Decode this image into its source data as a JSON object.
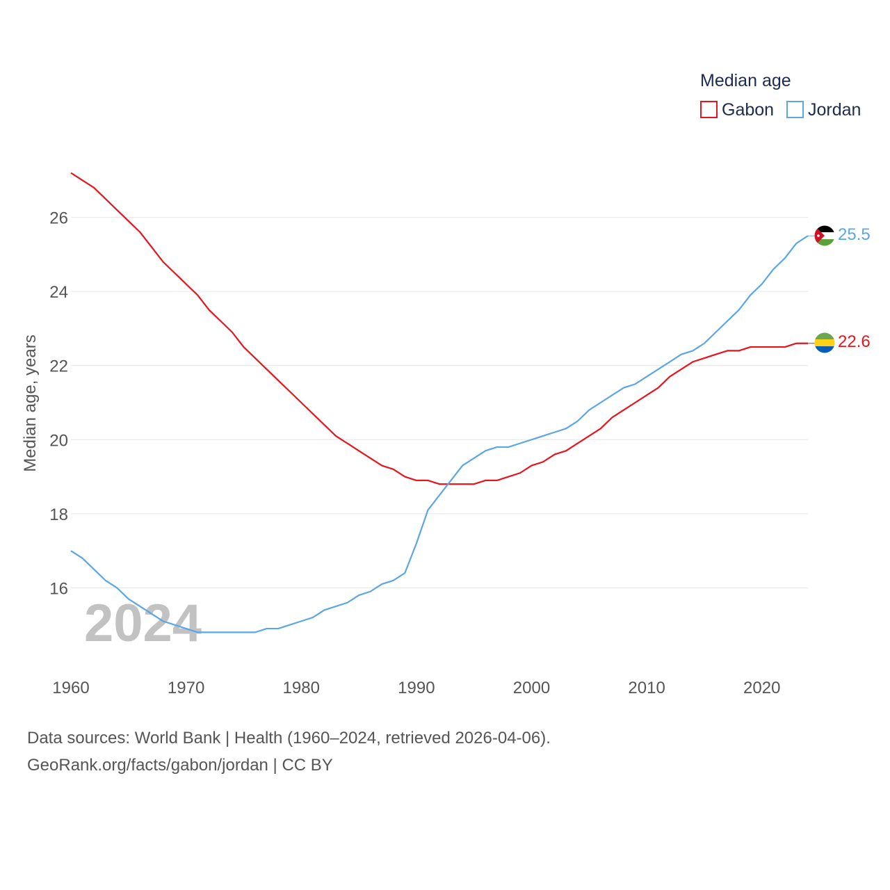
{
  "chart_data": {
    "type": "line",
    "title": "",
    "xlabel": "",
    "ylabel": "Median age, years",
    "legend_title": "Median age",
    "legend_position": "top-right",
    "year_label": "2024",
    "xlim": [
      1960,
      2024
    ],
    "ylim": [
      14,
      28
    ],
    "x_ticks": [
      1960,
      1970,
      1980,
      1990,
      2000,
      2010,
      2020
    ],
    "y_ticks": [
      16,
      18,
      20,
      22,
      24,
      26
    ],
    "x": [
      1960,
      1961,
      1962,
      1963,
      1964,
      1965,
      1966,
      1967,
      1968,
      1969,
      1970,
      1971,
      1972,
      1973,
      1974,
      1975,
      1976,
      1977,
      1978,
      1979,
      1980,
      1981,
      1982,
      1983,
      1984,
      1985,
      1986,
      1987,
      1988,
      1989,
      1990,
      1991,
      1992,
      1993,
      1994,
      1995,
      1996,
      1997,
      1998,
      1999,
      2000,
      2001,
      2002,
      2003,
      2004,
      2005,
      2006,
      2007,
      2008,
      2009,
      2010,
      2011,
      2012,
      2013,
      2014,
      2015,
      2016,
      2017,
      2018,
      2019,
      2020,
      2021,
      2022,
      2023,
      2024
    ],
    "series": [
      {
        "name": "Gabon",
        "color": "#e8141c",
        "end_label": "22.6",
        "flag": "gabon-flag",
        "values": [
          27.2,
          27.0,
          26.8,
          26.5,
          26.2,
          25.9,
          25.6,
          25.2,
          24.8,
          24.5,
          24.2,
          23.9,
          23.5,
          23.2,
          22.9,
          22.5,
          22.2,
          21.9,
          21.6,
          21.3,
          21.0,
          20.7,
          20.4,
          20.1,
          19.9,
          19.7,
          19.5,
          19.3,
          19.2,
          19.0,
          18.9,
          18.9,
          18.8,
          18.8,
          18.8,
          18.8,
          18.9,
          18.9,
          19.0,
          19.1,
          19.3,
          19.4,
          19.6,
          19.7,
          19.9,
          20.1,
          20.3,
          20.6,
          20.8,
          21.0,
          21.2,
          21.4,
          21.7,
          21.9,
          22.1,
          22.2,
          22.3,
          22.4,
          22.4,
          22.5,
          22.5,
          22.5,
          22.5,
          22.6,
          22.6
        ]
      },
      {
        "name": "Jordan",
        "color": "#5aa6e6",
        "end_label": "25.5",
        "flag": "jordan-flag",
        "values": [
          17.0,
          16.8,
          16.5,
          16.2,
          16.0,
          15.7,
          15.5,
          15.3,
          15.1,
          15.0,
          14.9,
          14.8,
          14.8,
          14.8,
          14.8,
          14.8,
          14.8,
          14.9,
          14.9,
          15.0,
          15.1,
          15.2,
          15.4,
          15.5,
          15.6,
          15.8,
          15.9,
          16.1,
          16.2,
          16.4,
          17.2,
          18.1,
          18.5,
          18.9,
          19.3,
          19.5,
          19.7,
          19.8,
          19.8,
          19.9,
          20.0,
          20.1,
          20.2,
          20.3,
          20.5,
          20.8,
          21.0,
          21.2,
          21.4,
          21.5,
          21.7,
          21.9,
          22.1,
          22.3,
          22.4,
          22.6,
          22.9,
          23.2,
          23.5,
          23.9,
          24.2,
          24.6,
          24.9,
          25.3,
          25.5
        ]
      }
    ]
  },
  "source": {
    "line1": "Data sources: World Bank | Health (1960–2024, retrieved 2026-04-06).",
    "line2": "GeoRank.org/facts/gabon/jordan | CC BY"
  }
}
